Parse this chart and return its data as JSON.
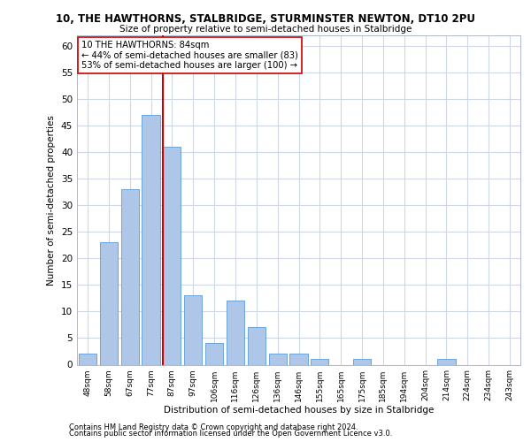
{
  "title1": "10, THE HAWTHORNS, STALBRIDGE, STURMINSTER NEWTON, DT10 2PU",
  "title2": "Size of property relative to semi-detached houses in Stalbridge",
  "xlabel": "Distribution of semi-detached houses by size in Stalbridge",
  "ylabel": "Number of semi-detached properties",
  "categories": [
    "48sqm",
    "58sqm",
    "67sqm",
    "77sqm",
    "87sqm",
    "97sqm",
    "106sqm",
    "116sqm",
    "126sqm",
    "136sqm",
    "146sqm",
    "155sqm",
    "165sqm",
    "175sqm",
    "185sqm",
    "194sqm",
    "204sqm",
    "214sqm",
    "224sqm",
    "234sqm",
    "243sqm"
  ],
  "values": [
    2,
    23,
    33,
    47,
    41,
    13,
    4,
    12,
    7,
    2,
    2,
    1,
    0,
    1,
    0,
    0,
    0,
    1,
    0,
    0,
    0
  ],
  "bar_color": "#aec6e8",
  "bar_edge_color": "#5b9bd5",
  "vline_index": 4,
  "vline_color": "#cc0000",
  "annotation_title": "10 THE HAWTHORNS: 84sqm",
  "annotation_line1": "← 44% of semi-detached houses are smaller (83)",
  "annotation_line2": "53% of semi-detached houses are larger (100) →",
  "annotation_box_color": "#ffffff",
  "annotation_box_edge": "#cc0000",
  "ylim": [
    0,
    62
  ],
  "yticks": [
    0,
    5,
    10,
    15,
    20,
    25,
    30,
    35,
    40,
    45,
    50,
    55,
    60
  ],
  "footer1": "Contains HM Land Registry data © Crown copyright and database right 2024.",
  "footer2": "Contains public sector information licensed under the Open Government Licence v3.0.",
  "bg_color": "#ffffff",
  "grid_color": "#d0d8e8"
}
